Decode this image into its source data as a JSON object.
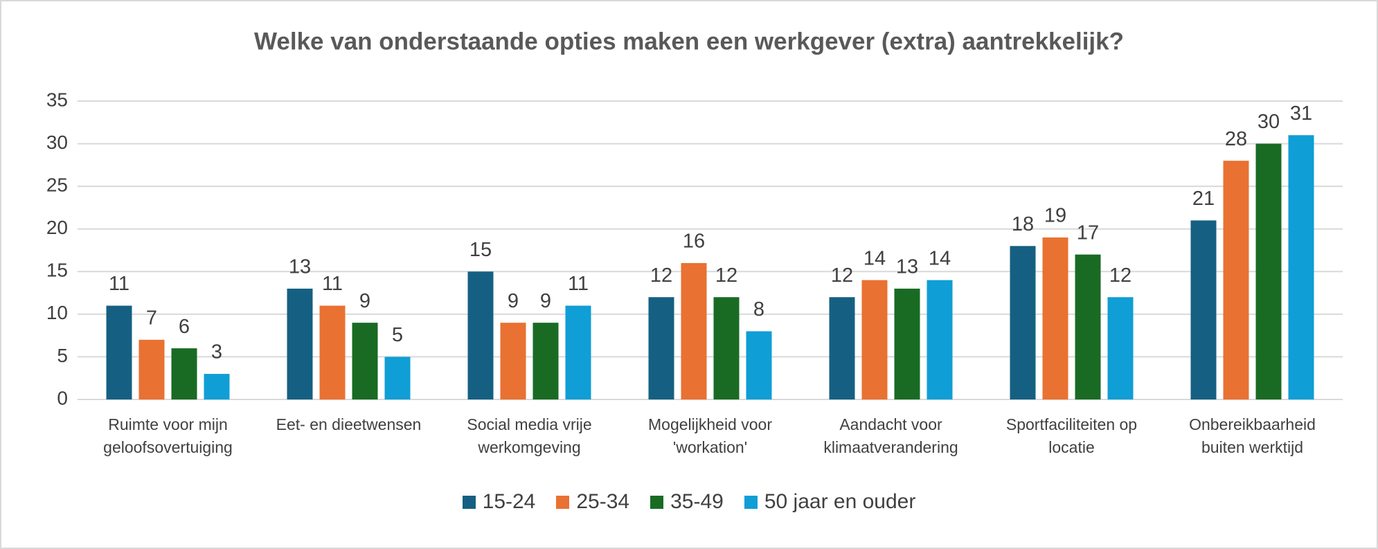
{
  "chart_data": {
    "type": "bar",
    "title": "Welke van onderstaande opties maken een werkgever (extra) aantrekkelijk?",
    "categories": [
      "Ruimte voor mijn geloofsovertuiging",
      "Eet- en dieetwensen",
      "Social media vrije werkomgeving",
      "Mogelijkheid voor 'workation'",
      "Aandacht voor klimaatverandering",
      "Sportfaciliteiten op locatie",
      "Onbereikbaarheid buiten werktijd"
    ],
    "series": [
      {
        "name": "15-24",
        "color": "#156082",
        "values": [
          11,
          13,
          15,
          12,
          12,
          18,
          21
        ]
      },
      {
        "name": "25-34",
        "color": "#e97132",
        "values": [
          7,
          11,
          9,
          16,
          14,
          19,
          28
        ]
      },
      {
        "name": "35-49",
        "color": "#196b24",
        "values": [
          6,
          9,
          9,
          12,
          13,
          17,
          30
        ]
      },
      {
        "name": "50 jaar en ouder",
        "color": "#0f9ed5",
        "values": [
          3,
          5,
          11,
          8,
          14,
          12,
          31
        ]
      }
    ],
    "ylim": [
      0,
      35
    ],
    "yticks": [
      0,
      5,
      10,
      15,
      20,
      25,
      30,
      35
    ],
    "grid": true,
    "legend": "bottom"
  }
}
